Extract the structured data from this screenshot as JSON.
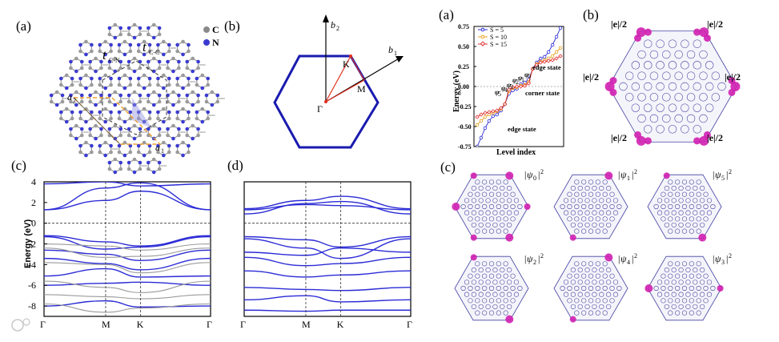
{
  "left_figure": {
    "panel_a": {
      "label": "(a)",
      "legend": [
        {
          "name": "C",
          "color": "#8a8a8a"
        },
        {
          "name": "N",
          "color": "#3b3bd0"
        }
      ],
      "bond_labels": [
        "t",
        "C-N",
        "t",
        "C-C"
      ],
      "lattice_vectors": [
        "a",
        "2",
        "a",
        "1"
      ]
    },
    "panel_b": {
      "label": "(b)",
      "points": [
        "Γ",
        "M",
        "K"
      ],
      "vectors": [
        "b",
        "2",
        "b",
        "1"
      ]
    },
    "panel_c": {
      "label": "(c)",
      "ylabel": "Energy (eV)",
      "yticks": [
        "4",
        "2",
        "0",
        "-2",
        "-4",
        "-6",
        "-8"
      ],
      "xticks": [
        "Γ",
        "M",
        "K",
        "Γ"
      ],
      "ylim": [
        -9,
        4
      ]
    },
    "panel_d": {
      "label": "(d)",
      "xticks": [
        "Γ",
        "M",
        "K",
        "Γ"
      ],
      "ylim": [
        -9,
        4
      ]
    }
  },
  "right_figure": {
    "panel_a": {
      "label": "(a)",
      "ylabel": "Energy (eV)",
      "xlabel": "Level index",
      "yticks": [
        "0.75",
        "0.50",
        "0.25",
        "0.00",
        "-0.25",
        "-0.50",
        "-0.75"
      ],
      "legend": [
        "S = 5",
        "S = 10",
        "S = 15"
      ],
      "annotations": [
        "edge state",
        "corner state",
        "edge state"
      ],
      "psi_labels": [
        "ψ",
        "5",
        "ψ",
        "4",
        "ψ",
        "3",
        "ψ",
        "2",
        "ψ",
        "1",
        "ψ",
        "0"
      ]
    },
    "panel_b": {
      "label": "(b)",
      "charge_labels": [
        "|e|/2",
        "|e|/2",
        "|e|/2",
        "|e|/2",
        "|e|/2",
        "|e|/2"
      ]
    },
    "panel_c": {
      "label": "(c)",
      "states": [
        {
          "psi": "ψ",
          "index": "0",
          "power": "2"
        },
        {
          "psi": "ψ",
          "index": "1",
          "power": "2"
        },
        {
          "psi": "ψ",
          "index": "5",
          "power": "2"
        },
        {
          "psi": "ψ",
          "index": "2",
          "power": "2"
        },
        {
          "psi": "ψ",
          "index": "4",
          "power": "2"
        },
        {
          "psi": "ψ",
          "index": "3",
          "power": "2"
        }
      ]
    }
  },
  "colors": {
    "band_blue": "#2b2bd6",
    "band_gray": "#9a9a9a",
    "magenta": "#d020b0",
    "series_s5": "#2b2bd6",
    "series_s10": "#e8a020",
    "series_s15": "#e03030",
    "orange_cell": "#f0a030"
  },
  "chart_data": [
    {
      "type": "line",
      "panel": "c",
      "ylabel": "Energy (eV)",
      "ylim": [
        -9,
        4
      ],
      "xticks": [
        "Γ",
        "M",
        "K",
        "Γ"
      ],
      "series": [
        {
          "color": "blue",
          "values": [
            1.3,
            2.2,
            3.1,
            1.3
          ]
        },
        {
          "color": "blue",
          "values": [
            1.3,
            3.4,
            3.9,
            1.3
          ]
        },
        {
          "color": "blue",
          "values": [
            3.8,
            4.0,
            3.6,
            3.8
          ]
        },
        {
          "color": "blue",
          "values": [
            -1.2,
            -1.8,
            -2.2,
            -1.2
          ]
        },
        {
          "color": "blue",
          "values": [
            -1.3,
            -2.5,
            -2.3,
            -1.3
          ]
        },
        {
          "color": "blue",
          "values": [
            -2.6,
            -3.0,
            -3.6,
            -2.6
          ]
        },
        {
          "color": "blue",
          "values": [
            -3.4,
            -3.9,
            -4.5,
            -3.4
          ]
        },
        {
          "color": "blue",
          "values": [
            -5.1,
            -4.4,
            -5.2,
            -5.1
          ]
        },
        {
          "color": "blue",
          "values": [
            -6.0,
            -5.8,
            -5.7,
            -6.0
          ]
        },
        {
          "color": "blue",
          "values": [
            -8.0,
            -7.5,
            -8.1,
            -8.0
          ]
        },
        {
          "color": "gray",
          "values": [
            -2.0,
            -2.2,
            -2.6,
            -2.0
          ]
        },
        {
          "color": "gray",
          "values": [
            -2.4,
            -3.3,
            -3.2,
            -2.4
          ]
        },
        {
          "color": "gray",
          "values": [
            -3.8,
            -4.0,
            -4.8,
            -3.8
          ]
        },
        {
          "color": "gray",
          "values": [
            -5.6,
            -6.2,
            -6.7,
            -5.6
          ]
        },
        {
          "color": "gray",
          "values": [
            -6.9,
            -7.1,
            -7.3,
            -6.9
          ]
        },
        {
          "color": "gray",
          "values": [
            -7.8,
            -8.6,
            -8.2,
            -7.8
          ]
        }
      ]
    },
    {
      "type": "line",
      "panel": "d",
      "ylim": [
        -9,
        4
      ],
      "xticks": [
        "Γ",
        "M",
        "K",
        "Γ"
      ],
      "series": [
        {
          "color": "blue",
          "values": [
            1.4,
            2.2,
            2.6,
            1.4
          ]
        },
        {
          "color": "blue",
          "values": [
            1.3,
            1.8,
            1.7,
            1.3
          ]
        },
        {
          "color": "blue",
          "values": [
            0.9,
            1.9,
            2.1,
            0.9
          ]
        },
        {
          "color": "blue",
          "values": [
            -1.3,
            -1.6,
            -2.3,
            -1.3
          ]
        },
        {
          "color": "blue",
          "values": [
            -1.5,
            -2.4,
            -3.4,
            -1.5
          ]
        },
        {
          "color": "blue",
          "values": [
            -2.8,
            -3.1,
            -2.4,
            -2.8
          ]
        },
        {
          "color": "blue",
          "values": [
            -3.3,
            -4.1,
            -3.9,
            -3.3
          ]
        },
        {
          "color": "blue",
          "values": [
            -4.6,
            -5.2,
            -5.0,
            -4.6
          ]
        },
        {
          "color": "blue",
          "values": [
            -6.2,
            -6.4,
            -6.5,
            -6.2
          ]
        },
        {
          "color": "blue",
          "values": [
            -7.4,
            -7.0,
            -7.6,
            -7.4
          ]
        },
        {
          "color": "blue",
          "values": [
            -8.4,
            -8.5,
            -8.4,
            -8.4
          ]
        }
      ]
    },
    {
      "type": "scatter",
      "panel": "right-a",
      "ylabel": "Energy (eV)",
      "xlabel": "Level index",
      "ylim": [
        -0.75,
        0.75
      ],
      "legend": "top-left",
      "series": [
        {
          "name": "S = 5",
          "marker": "circle",
          "x": [
            0,
            1,
            2,
            3,
            4,
            5,
            6,
            7,
            8,
            9,
            10,
            11,
            12,
            13,
            14,
            15,
            16,
            17,
            18,
            19,
            20,
            21
          ],
          "values": [
            -0.75,
            -0.64,
            -0.52,
            -0.43,
            -0.37,
            -0.35,
            -0.3,
            -0.22,
            -0.09,
            -0.05,
            -0.03,
            0.03,
            0.05,
            0.09,
            0.22,
            0.3,
            0.35,
            0.37,
            0.43,
            0.52,
            0.62,
            0.73
          ]
        },
        {
          "name": "S = 10",
          "marker": "circle",
          "x": [
            0,
            1,
            2,
            3,
            4,
            5,
            6,
            7,
            8,
            9,
            10,
            11,
            12,
            13,
            14,
            15,
            16,
            17,
            18,
            19,
            20,
            21
          ],
          "values": [
            -0.48,
            -0.43,
            -0.38,
            -0.35,
            -0.33,
            -0.31,
            -0.28,
            -0.22,
            -0.06,
            -0.02,
            -0.01,
            0.01,
            0.02,
            0.06,
            0.22,
            0.28,
            0.31,
            0.33,
            0.35,
            0.38,
            0.43,
            0.48
          ]
        },
        {
          "name": "S = 15",
          "marker": "diamond",
          "x": [
            0,
            1,
            2,
            3,
            4,
            5,
            6,
            7,
            8,
            9,
            10,
            11,
            12,
            13,
            14,
            15,
            16,
            17,
            18,
            19,
            20,
            21
          ],
          "values": [
            -0.38,
            -0.35,
            -0.33,
            -0.32,
            -0.31,
            -0.3,
            -0.27,
            -0.22,
            -0.04,
            -0.01,
            0.0,
            0.0,
            0.01,
            0.04,
            0.22,
            0.27,
            0.3,
            0.31,
            0.32,
            0.33,
            0.35,
            0.38
          ]
        }
      ]
    }
  ]
}
